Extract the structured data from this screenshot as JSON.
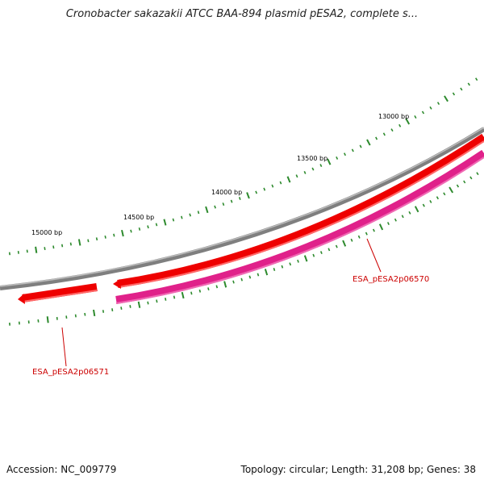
{
  "title": "Cronobacter sakazakii ATCC BAA-894 plasmid pESA2, complete s...",
  "footer": {
    "accession": "Accession: NC_009779",
    "summary": "Topology: circular; Length: 31,208 bp; Genes: 38"
  },
  "scale_labels": [
    "13000 bp",
    "13500 bp",
    "14000 bp",
    "14500 bp",
    "15000 bp"
  ],
  "genes": [
    {
      "label": "ESA_pESA2p06570"
    },
    {
      "label": "ESA_pESA2p06571"
    }
  ],
  "colors": {
    "backbone": "#7f7f7f",
    "gene_forward": "#ee0000",
    "gene_reverse": "#e0218a",
    "tick": "#2d8a2d",
    "label": "#cc0000"
  }
}
